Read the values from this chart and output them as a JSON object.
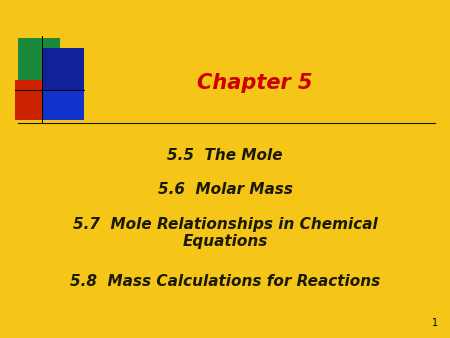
{
  "background_color": "#F5C518",
  "title": "Chapter 5",
  "title_color": "#CC0000",
  "title_fontsize": 15,
  "lines": [
    "5.5  The Mole",
    "5.6  Molar Mass",
    "5.7  Mole Relationships in Chemical\nEquations",
    "5.8  Mass Calculations for Reactions"
  ],
  "lines_color": "#1a1a00",
  "lines_fontsize": 11,
  "slide_number": "1",
  "slide_number_color": "#000000",
  "slide_number_fontsize": 7,
  "divider_color": "#1a1a00",
  "logo_green_color": "#1a8a3a",
  "logo_red_color": "#CC2200",
  "logo_blue_color": "#1133CC",
  "logo_darkblue_color": "#112299"
}
